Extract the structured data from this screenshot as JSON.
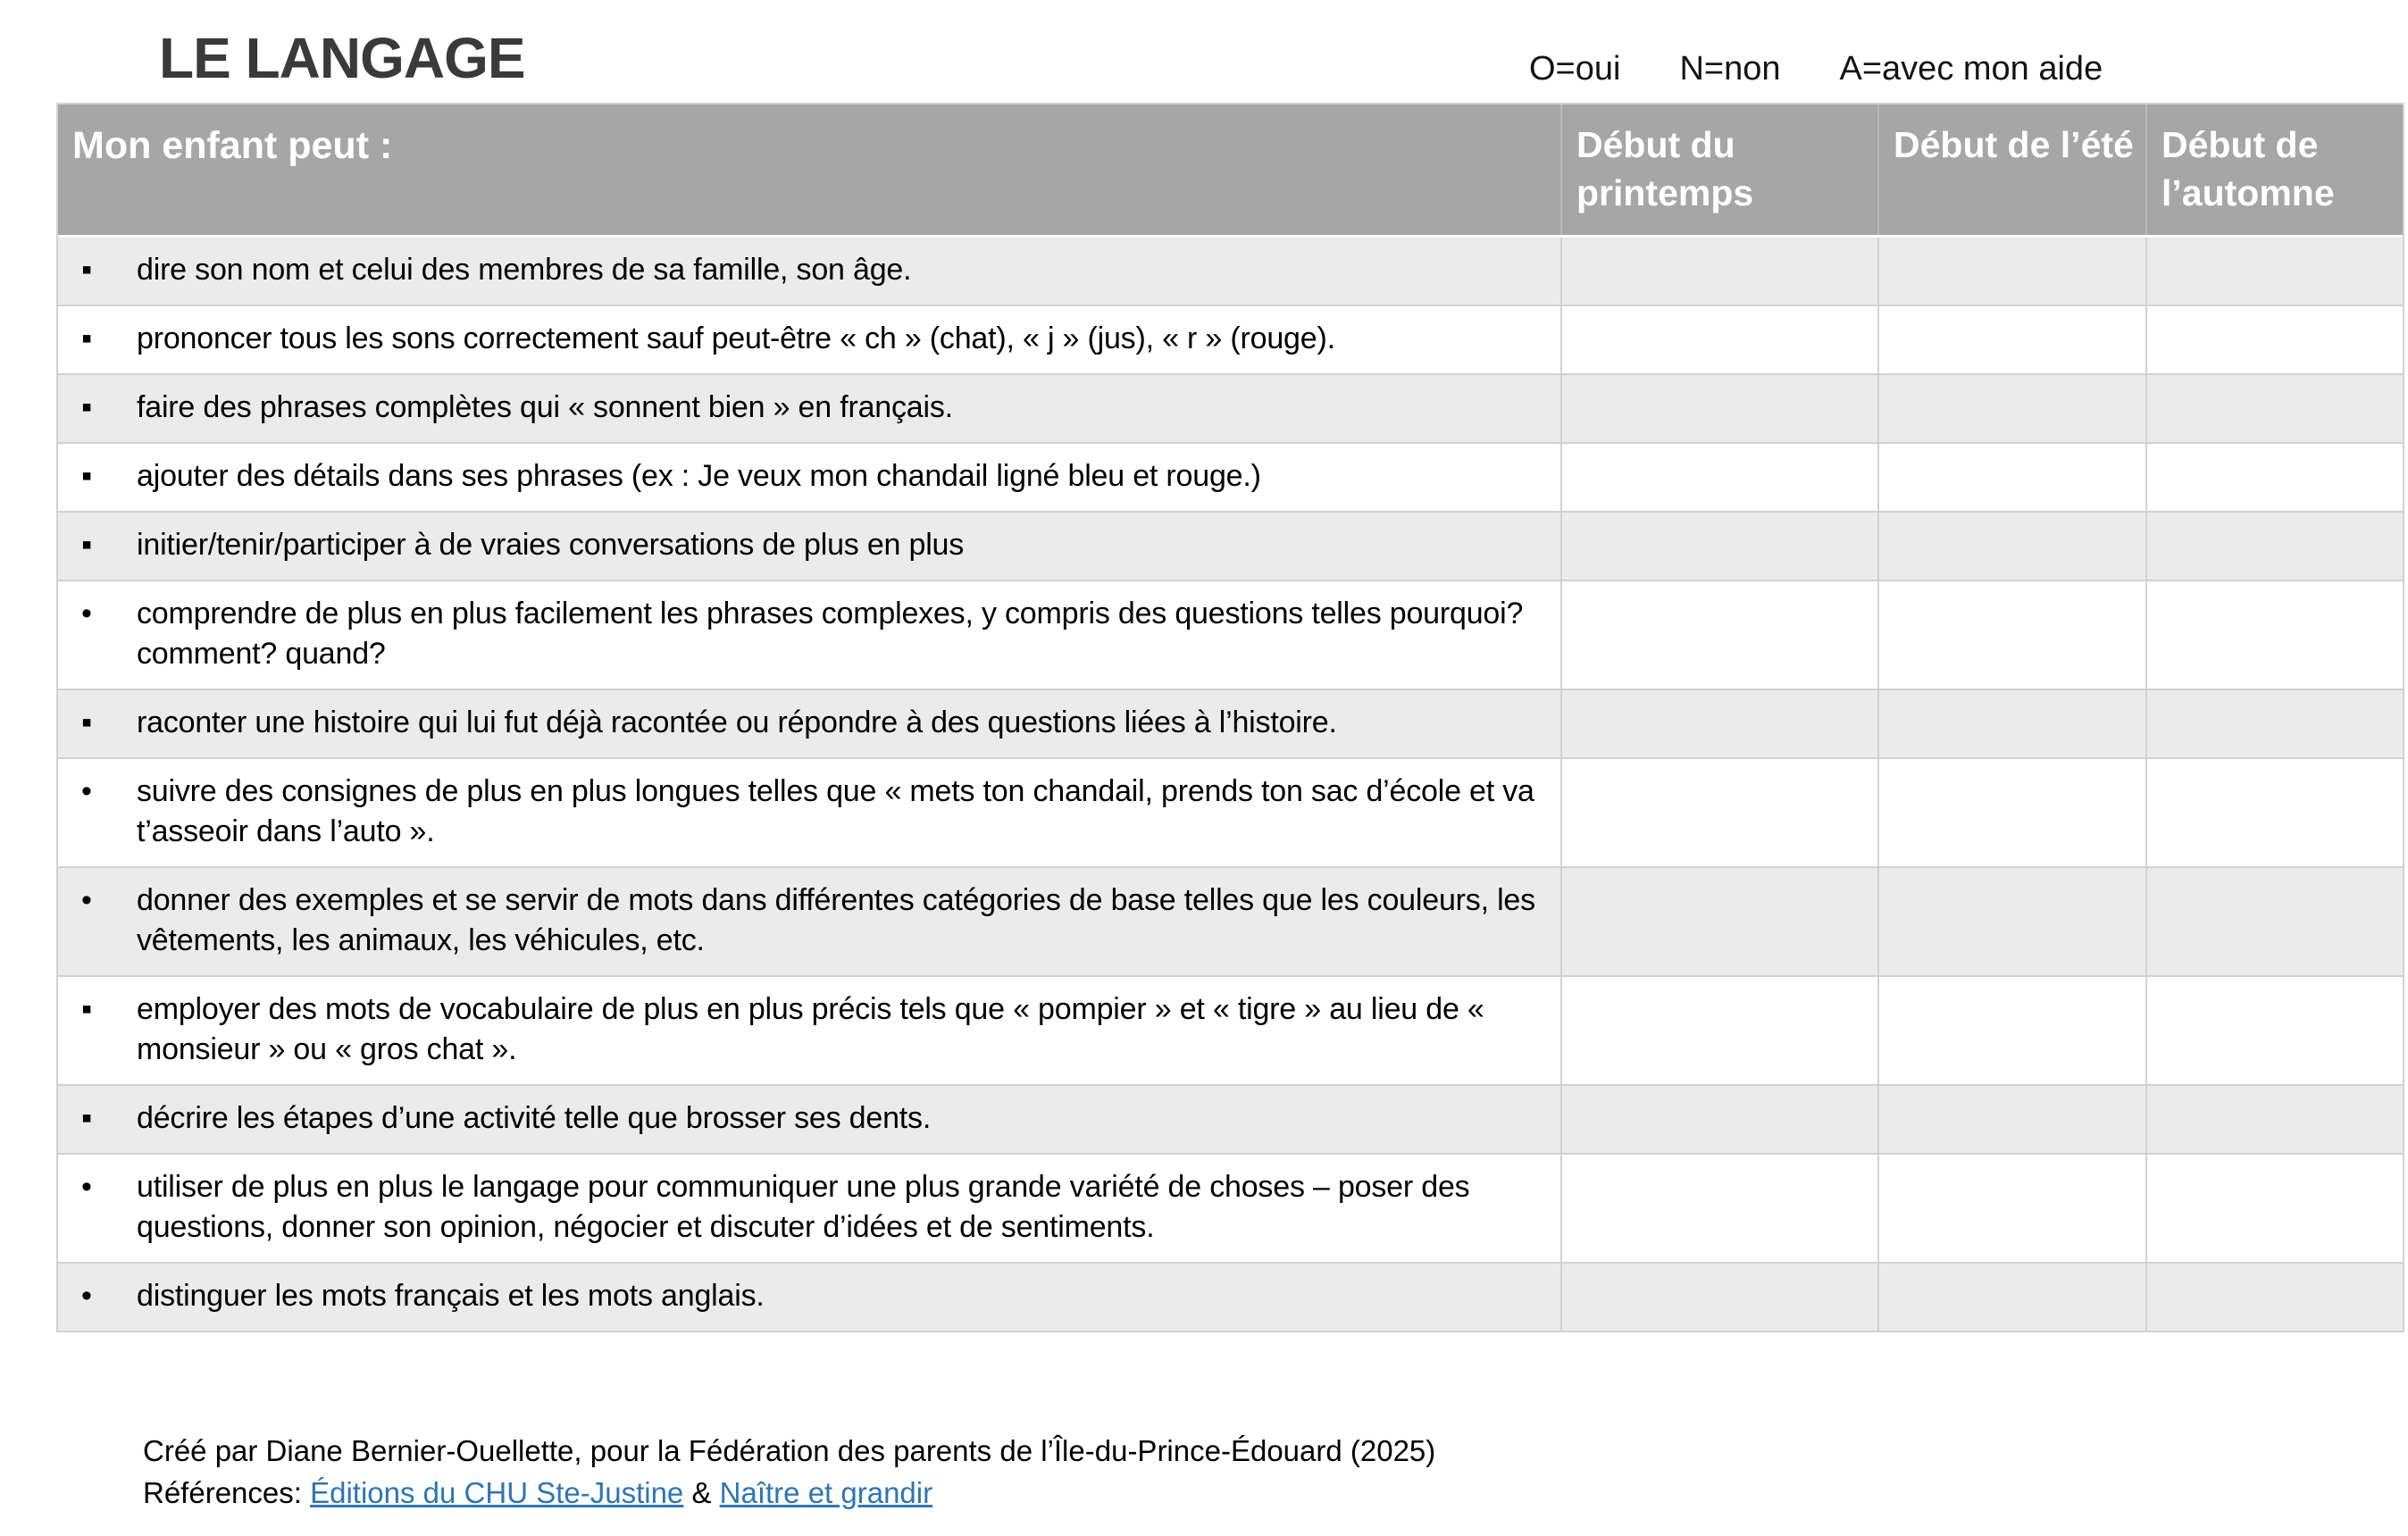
{
  "title": "LE LANGAGE",
  "legend": {
    "items": [
      "O=oui",
      "N=non",
      "A=avec mon aide"
    ]
  },
  "table": {
    "header": {
      "label": "Mon enfant peut :",
      "columns": [
        "Début du printemps",
        "Début de l’été",
        "Début de l’automne"
      ]
    },
    "rows": [
      {
        "bullet": "▪",
        "text": "dire son nom et celui des membres de sa famille, son âge.",
        "values": [
          "",
          "",
          ""
        ]
      },
      {
        "bullet": "▪",
        "text": "prononcer tous les sons correctement sauf peut-être « ch » (chat), « j » (jus), « r » (rouge).",
        "values": [
          "",
          "",
          ""
        ]
      },
      {
        "bullet": "▪",
        "text": "faire des phrases complètes qui « sonnent bien » en français.",
        "values": [
          "",
          "",
          ""
        ]
      },
      {
        "bullet": "▪",
        "text": "ajouter des détails dans ses phrases (ex : Je veux mon chandail ligné bleu et rouge.)",
        "values": [
          "",
          "",
          ""
        ]
      },
      {
        "bullet": "▪",
        "text": "initier/tenir/participer à de vraies conversations de plus en plus",
        "values": [
          "",
          "",
          ""
        ]
      },
      {
        "bullet": "•",
        "text": "comprendre de plus en plus facilement les phrases complexes, y compris des questions telles pourquoi? comment? quand?",
        "values": [
          "",
          "",
          ""
        ]
      },
      {
        "bullet": "▪",
        "text": "raconter une histoire qui lui fut déjà racontée ou répondre à des questions liées à l’histoire.",
        "values": [
          "",
          "",
          ""
        ]
      },
      {
        "bullet": "•",
        "text": "suivre des consignes de plus en plus longues telles que « mets ton chandail, prends ton sac d’école et va t’asseoir dans l’auto ».",
        "values": [
          "",
          "",
          ""
        ]
      },
      {
        "bullet": "•",
        "text": "donner des exemples et se servir de mots dans différentes catégories de base telles que les couleurs, les vêtements, les animaux, les véhicules, etc.",
        "values": [
          "",
          "",
          ""
        ]
      },
      {
        "bullet": "▪",
        "text": "employer des mots de vocabulaire de plus en plus précis tels que « pompier » et « tigre » au lieu de « monsieur » ou « gros chat ».",
        "values": [
          "",
          "",
          ""
        ]
      },
      {
        "bullet": "▪",
        "text": "décrire les étapes d’une activité telle que brosser ses dents.",
        "values": [
          "",
          "",
          ""
        ]
      },
      {
        "bullet": "•",
        "text": "utiliser de plus en plus le langage pour communiquer une plus grande variété de choses – poser des questions, donner son opinion, négocier et discuter d’idées et de sentiments.",
        "values": [
          "",
          "",
          ""
        ]
      },
      {
        "bullet": "•",
        "text": "distinguer les mots français et les mots anglais.",
        "values": [
          "",
          "",
          ""
        ]
      }
    ]
  },
  "footer": {
    "credit": "Créé par Diane Bernier-Ouellette, pour la Fédération des parents de l’Île-du-Prince-Édouard (2025)",
    "references_label": "Références: ",
    "separator": " & ",
    "links": [
      {
        "label": "Éditions du CHU Ste-Justine"
      },
      {
        "label": "Naître et grandir"
      }
    ]
  },
  "colors": {
    "header_bg": "#a6a6a6",
    "header_text": "#ffffff",
    "row_shade": "#ebebeb",
    "grid_line": "#d2d2d2",
    "title_text": "#3a3a3a",
    "link_blue": "#2e75b6"
  }
}
